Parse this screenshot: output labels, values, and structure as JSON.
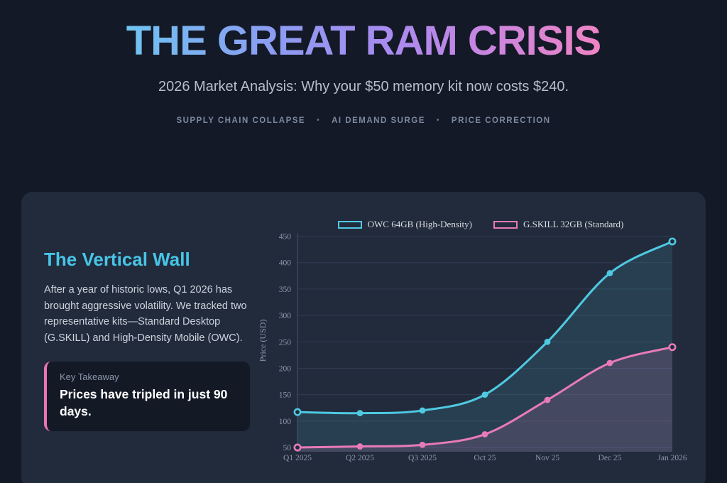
{
  "header": {
    "title": "THE GREAT RAM CRISIS",
    "subtitle": "2026 Market Analysis: Why your $50 memory kit now costs $240.",
    "tags": [
      "SUPPLY CHAIN COLLAPSE",
      "AI DEMAND SURGE",
      "PRICE CORRECTION"
    ],
    "tag_separator": "•"
  },
  "panel": {
    "heading": "The Vertical Wall",
    "body": "After a year of historic lows, Q1 2026 has brought aggressive volatility. We tracked two representative kits—Standard Desktop (G.SKILL) and High-Density Mobile (OWC).",
    "takeaway": {
      "label": "Key Takeaway",
      "text": "Prices have tripled in just 90 days."
    }
  },
  "chart_data": {
    "type": "line",
    "categories": [
      "Q1 2025",
      "Q2 2025",
      "Q3 2025",
      "Oct 25",
      "Nov 25",
      "Dec 25",
      "Jan 2026"
    ],
    "series": [
      {
        "name": "OWC 64GB (High-Density)",
        "values": [
          117,
          115,
          120,
          150,
          250,
          380,
          440
        ],
        "color": "#4fc9e2"
      },
      {
        "name": "G.SKILL 32GB (Standard)",
        "values": [
          50,
          52,
          55,
          75,
          140,
          210,
          240
        ],
        "color": "#e87ab8"
      }
    ],
    "ylabel": "Price (USD)",
    "xlabel": "",
    "ylim": [
      50,
      455
    ],
    "yticks": [
      50,
      100,
      150,
      200,
      250,
      300,
      350,
      400,
      450
    ],
    "grid": true,
    "legend_position": "top center",
    "marker_style": "filled circles; first and last points hollow",
    "area_fill": true
  },
  "colors": {
    "page_background": "#131926",
    "card_background": "#222b3b",
    "takeaway_background": "#131925",
    "accent_cyan": "#4fc9e2",
    "accent_pink": "#e87ab8",
    "heading_cyan": "#47c5e8",
    "gridline": "#303b54",
    "title_gradient": [
      "#6fc3f2",
      "#8b9df2",
      "#a78bf0",
      "#ef84c4"
    ]
  }
}
